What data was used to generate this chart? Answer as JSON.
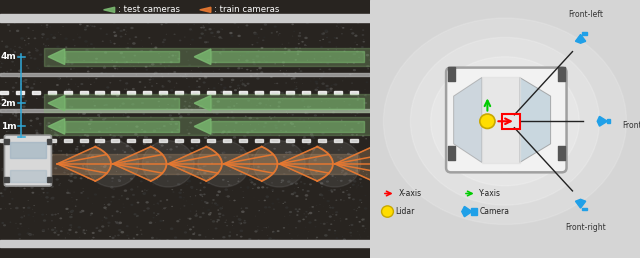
{
  "fig_width": 6.4,
  "fig_height": 2.58,
  "dpi": 100,
  "left_bg": "#2a2520",
  "road_dark": "#2e2b27",
  "white_stripe": "#dddddd",
  "green_arrow": "#7ab870",
  "green_band": "#8ab878",
  "orange_color": "#e87830",
  "orange_fill": "#c88050",
  "blue_meas": "#30a8d8",
  "car_body": "#c8c8c8",
  "cam_blue": "#20a0e8",
  "right_bg": "#d8d8d8",
  "legend_labels": {
    "test": ": test cameras",
    "train": ": train cameras",
    "x_axis": "X-axis",
    "y_axis": "Y-axis",
    "lidar": "Lidar",
    "camera": "Camera",
    "front_left": "Front-left",
    "front": "Front",
    "front_right": "Front-right"
  }
}
